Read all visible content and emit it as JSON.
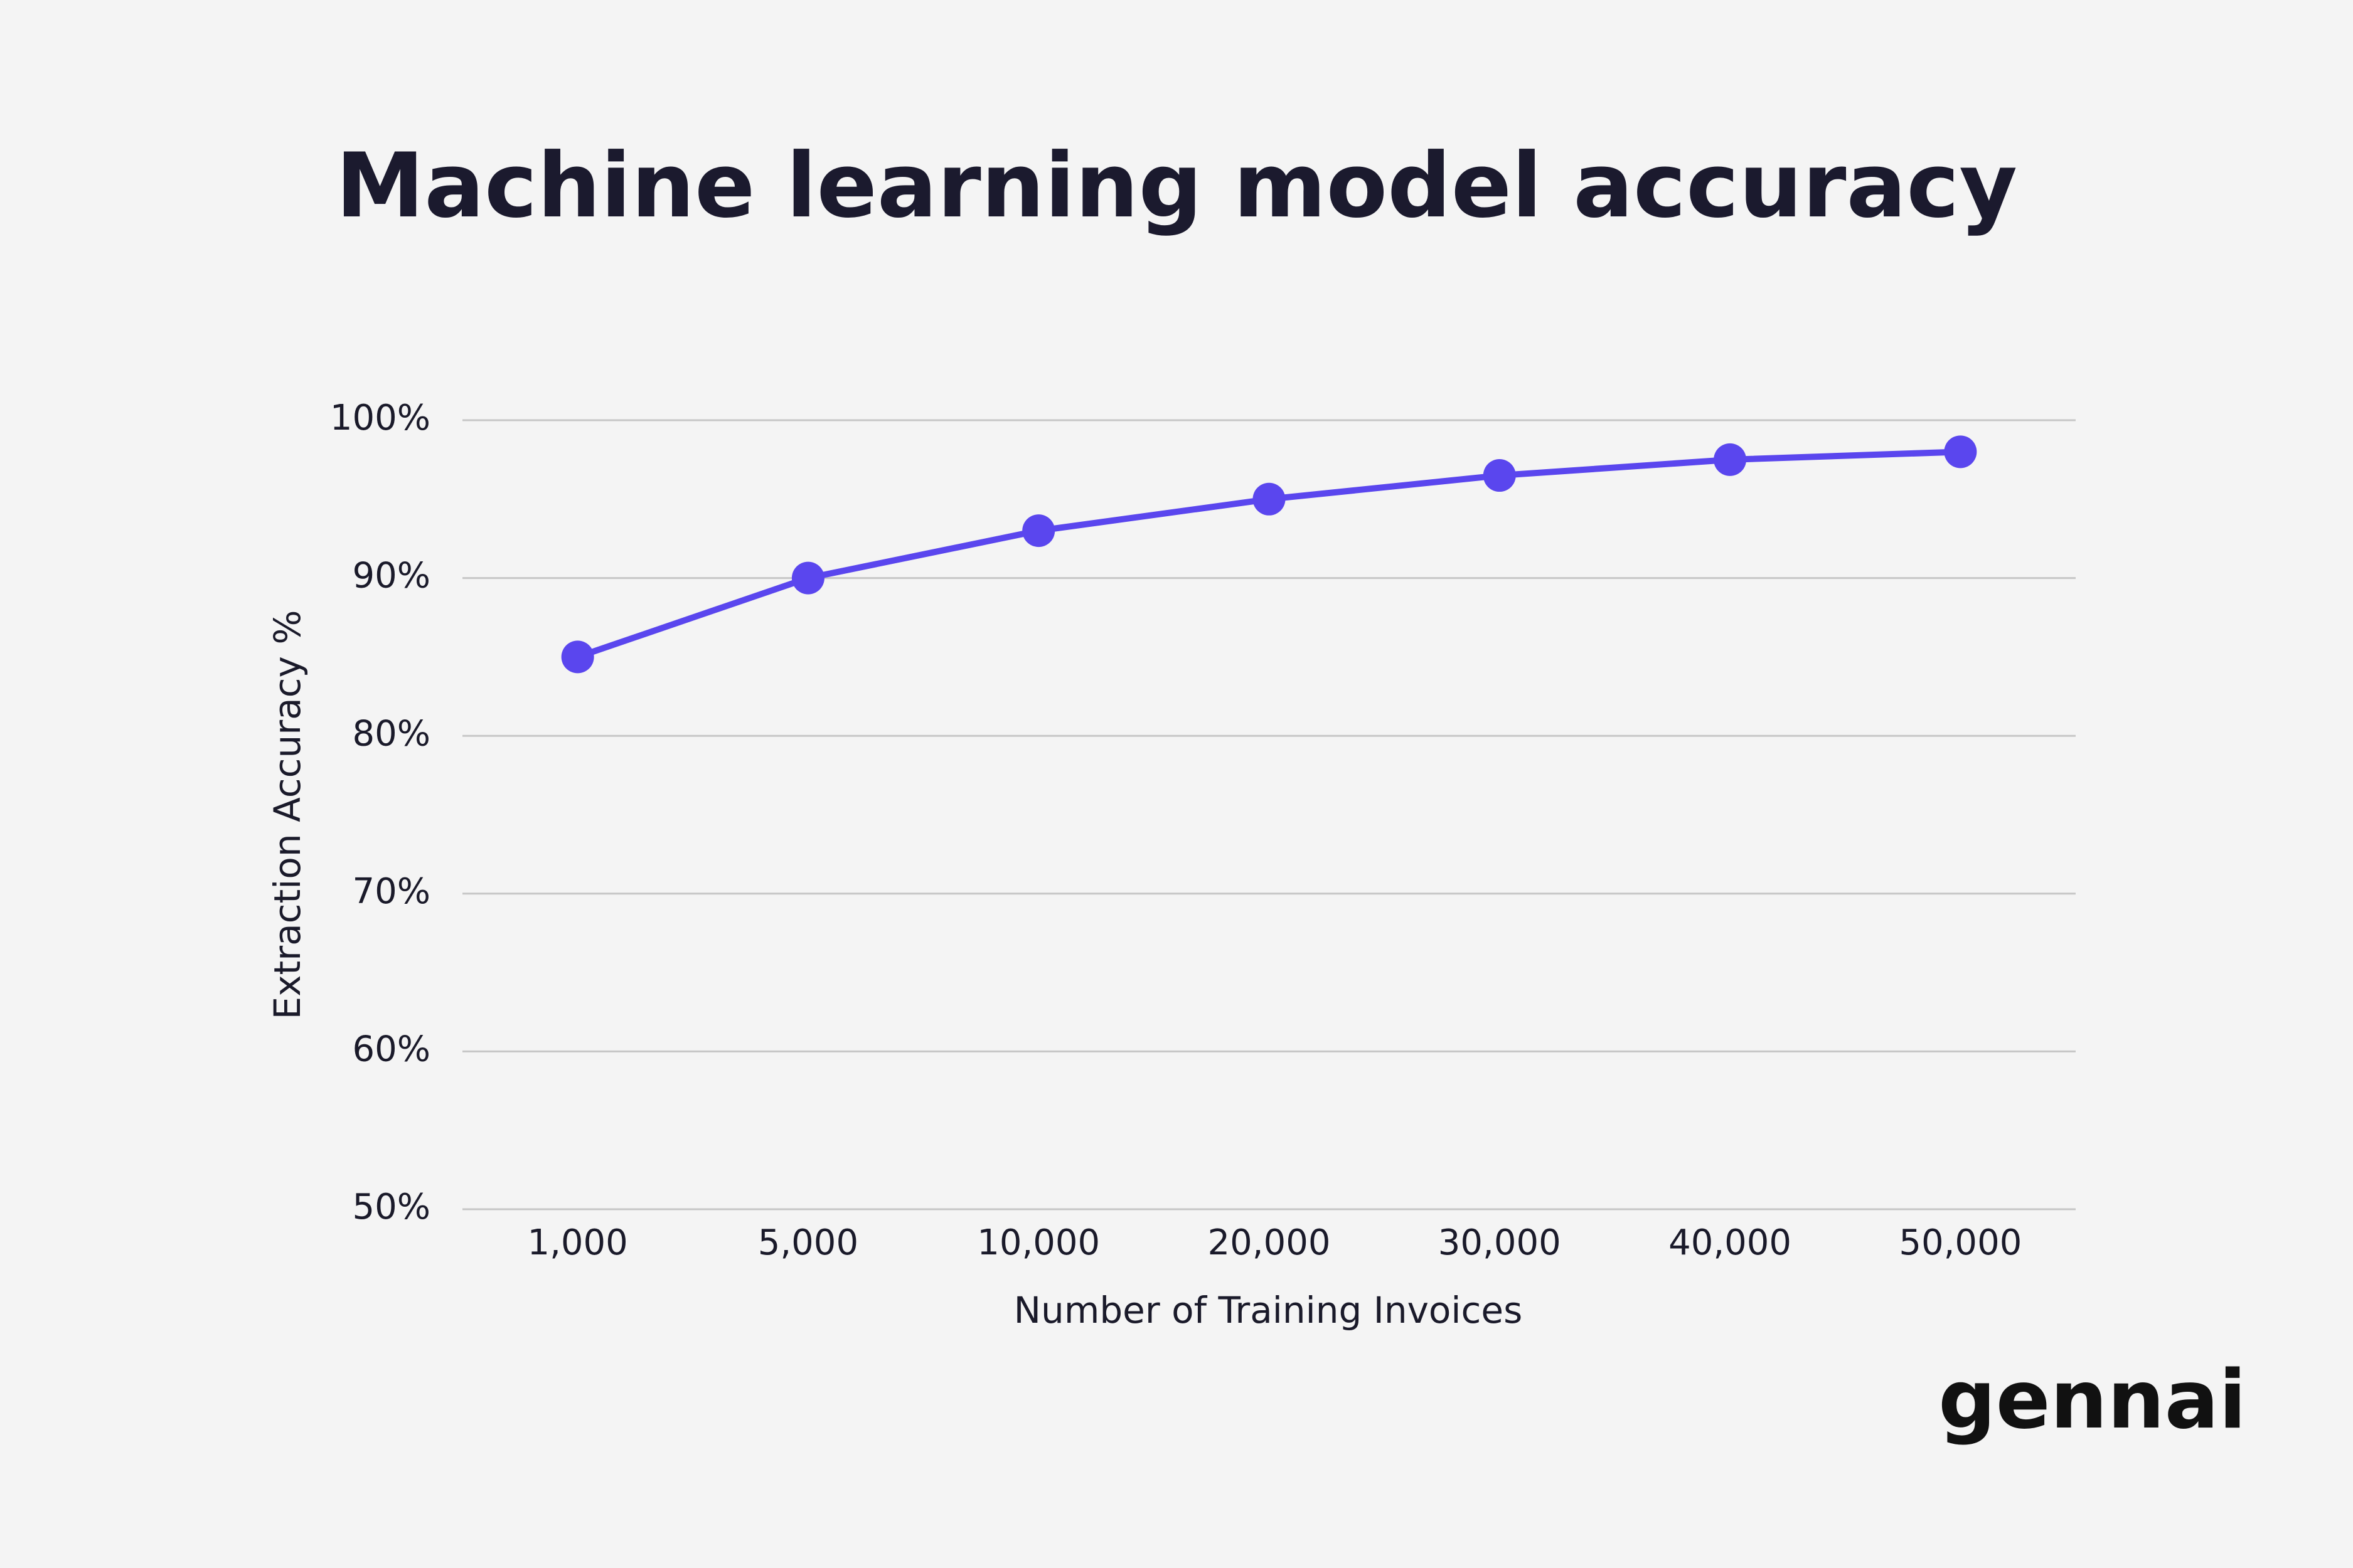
{
  "chart_data": {
    "type": "line",
    "title": "Machine learning model accuracy",
    "x_label": "Number of Training Invoices",
    "y_label": "Extraction Accuracy %",
    "categories": [
      "1,000",
      "5,000",
      "10,000",
      "20,000",
      "30,000",
      "40,000",
      "50,000"
    ],
    "values": [
      85,
      90,
      93,
      95,
      96.5,
      97.5,
      98
    ],
    "color": "#5a46ee",
    "ylim": [
      50,
      100
    ],
    "yticks": [
      {
        "value": 50,
        "label": "50%"
      },
      {
        "value": 60,
        "label": "60%"
      },
      {
        "value": 70,
        "label": "70%"
      },
      {
        "value": 80,
        "label": "80%"
      },
      {
        "value": 90,
        "label": "90%"
      },
      {
        "value": 100,
        "label": "100%"
      }
    ],
    "grid": true
  },
  "brand": "gennai"
}
